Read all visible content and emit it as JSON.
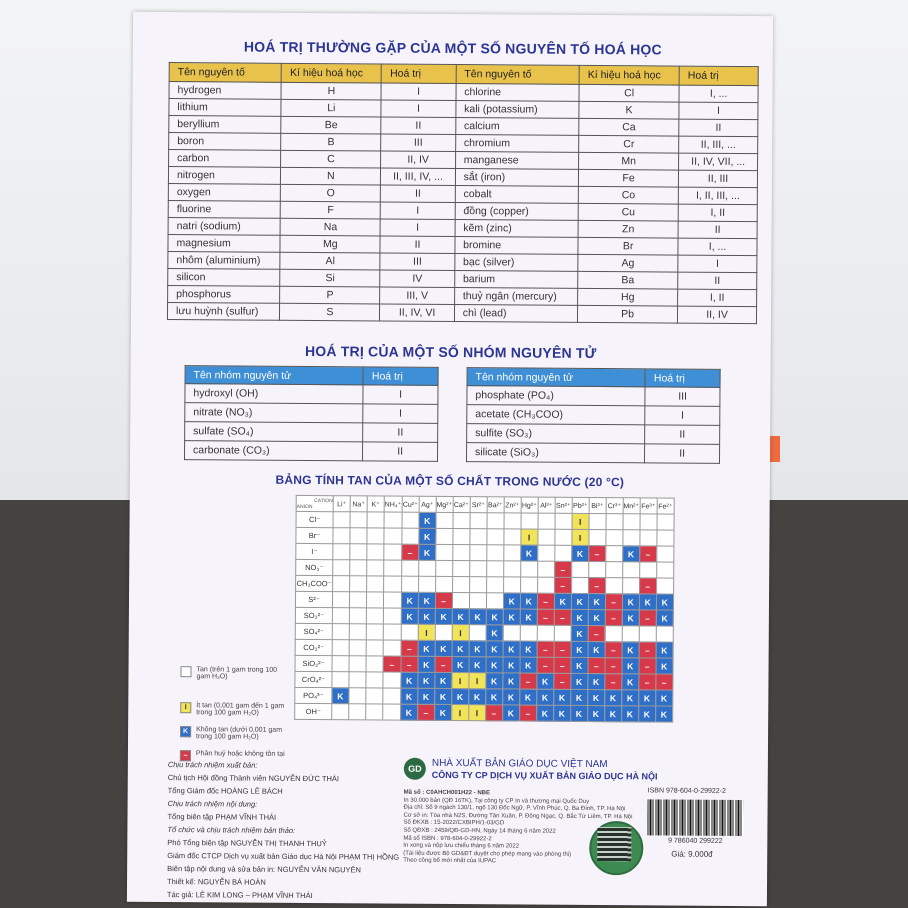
{
  "title1": "HOÁ TRỊ THƯỜNG GẶP CỦA MỘT SỐ NGUYÊN TỐ HOÁ HỌC",
  "t1_headers": [
    "Tên nguyên tố",
    "Kí hiệu hoá học",
    "Hoá trị",
    "Tên nguyên tố",
    "Kí hiệu hoá học",
    "Hoá trị"
  ],
  "t1_rows": [
    [
      "hydrogen",
      "H",
      "I",
      "chlorine",
      "Cl",
      "I, ..."
    ],
    [
      "lithium",
      "Li",
      "I",
      "kali (potassium)",
      "K",
      "I"
    ],
    [
      "beryllium",
      "Be",
      "II",
      "calcium",
      "Ca",
      "II"
    ],
    [
      "boron",
      "B",
      "III",
      "chromium",
      "Cr",
      "II, III, ..."
    ],
    [
      "carbon",
      "C",
      "II, IV",
      "manganese",
      "Mn",
      "II, IV, VII, ..."
    ],
    [
      "nitrogen",
      "N",
      "II, III, IV, ...",
      "sắt (iron)",
      "Fe",
      "II, III"
    ],
    [
      "oxygen",
      "O",
      "II",
      "cobalt",
      "Co",
      "I, II, III, ..."
    ],
    [
      "fluorine",
      "F",
      "I",
      "đồng (copper)",
      "Cu",
      "I, II"
    ],
    [
      "natri (sodium)",
      "Na",
      "I",
      "kẽm (zinc)",
      "Zn",
      "II"
    ],
    [
      "magnesium",
      "Mg",
      "II",
      "bromine",
      "Br",
      "I, ..."
    ],
    [
      "nhôm (aluminium)",
      "Al",
      "III",
      "bạc (silver)",
      "Ag",
      "I"
    ],
    [
      "silicon",
      "Si",
      "IV",
      "barium",
      "Ba",
      "II"
    ],
    [
      "phosphorus",
      "P",
      "III, V",
      "thuỷ ngân (mercury)",
      "Hg",
      "I, II"
    ],
    [
      "lưu huỳnh (sulfur)",
      "S",
      "II, IV, VI",
      "chì (lead)",
      "Pb",
      "II, IV"
    ]
  ],
  "title2": "HOÁ TRỊ CỦA MỘT SỐ NHÓM NGUYÊN TỬ",
  "t2_headers": [
    "Tên nhóm nguyên tử",
    "Hoá trị"
  ],
  "t2_left": [
    [
      "hydroxyl (OH)",
      "I"
    ],
    [
      "nitrate (NO₃)",
      "I"
    ],
    [
      "sulfate (SO₄)",
      "II"
    ],
    [
      "carbonate (CO₃)",
      "II"
    ]
  ],
  "t2_right": [
    [
      "phosphate (PO₄)",
      "III"
    ],
    [
      "acetate (CH₃COO)",
      "I"
    ],
    [
      "sulfite (SO₃)",
      "II"
    ],
    [
      "silicate (SiO₃)",
      "II"
    ]
  ],
  "title3": "BẢNG TÍNH TAN CỦA MỘT SỐ CHẤT TRONG NƯỚC (20 °C)",
  "sol_corner_top": "CATION",
  "sol_corner_bottom": "ANION",
  "cations": [
    "Li⁺",
    "Na⁺",
    "K⁺",
    "NH₄⁺",
    "Cu²⁺",
    "Ag⁺",
    "Mg²⁺",
    "Ca²⁺",
    "Sr²⁺",
    "Ba²⁺",
    "Zn²⁺",
    "Hg²⁺",
    "Al³⁺",
    "Sn²⁺",
    "Pb²⁺",
    "Bi³⁺",
    "Cr³⁺",
    "Mn²⁺",
    "Fe³⁺",
    "Fe²⁺"
  ],
  "anions": [
    "Cl⁻",
    "Br⁻",
    "I⁻",
    "NO₃⁻",
    "CH₃COO⁻",
    "S²⁻",
    "SO₃²⁻",
    "SO₄²⁻",
    "CO₃²⁻",
    "SiO₃²⁻",
    "CrO₄²⁻",
    "PO₄³⁻",
    "OH⁻"
  ],
  "sol_grid": [
    "TTTTTKTTTTTTTTITTTTT",
    "TTTTTKTTTTTITTITTTTT",
    "TTTTXKTTTTTKTTKXTKXT",
    "TTTTTTTTTTTTTXTTTTTT",
    "TTTTTTTTTTTTTXTXTTXT",
    "TTTTKKXTTTKKXKKKXKKK",
    "TTTTKKKKKKKKXXKKXKXK",
    "TTTTTITITKTTTTKXTTTT",
    "TTTTXKKKKKKKXXKKXKXK",
    "TTTXXKXKKKKKXXKXXKXK",
    "TTTTKKKIIKKXKXKKXKXX",
    "KTTTKKKKKKKKKKKKKKKK",
    "TTTTKXKIIXKXKKKKKKKK"
  ],
  "legend": [
    {
      "sym": "",
      "text": "Tan (trên 1 gam trong 100 gam H₂O)"
    },
    {
      "sym": "I",
      "text": "Ít tan (0,001 gam đến 1 gam trong 100 gam H₂O)"
    },
    {
      "sym": "K",
      "text": "Không tan (dưới 0,001 gam trong 100 gam H₂O)"
    },
    {
      "sym": "–",
      "text": "Phân huỷ hoặc không tồn tại"
    }
  ],
  "credits": [
    "Chịu trách nhiệm xuất bản:",
    "Chủ tịch Hội đồng Thành viên NGUYỄN ĐỨC THÁI",
    "Tổng Giám đốc HOÀNG LÊ BÁCH",
    "Chịu trách nhiệm nội dung:",
    "Tổng biên tập PHẠM VĨNH THÁI",
    "Tổ chức và chịu trách nhiệm bản thảo:",
    "Phó Tổng biên tập NGUYỄN THỊ THANH THUỶ",
    "Giám đốc CTCP Dịch vụ xuất bản Giáo dục Hà Nội PHẠM THỊ HỒNG",
    "Biên tập nội dung và sửa bản in: NGUYỄN VĂN NGUYÊN",
    "Thiết kế: NGUYỄN BÁ HOÀN",
    "Tác giả: LÊ KIM LONG – PHẠM VĨNH THÁI"
  ],
  "publisher1": "NHÀ XUẤT BẢN GIÁO DỤC VIỆT NAM",
  "publisher2": "CÔNG TY CP DỊCH VỤ XUẤT BẢN GIÁO DỤC HÀ NỘI",
  "imprint": [
    "Mã số : C0AHCH001H22 - NBE",
    "In 30.000 bản (QĐ 16TK), Tại công ty CP In và thương mại Quốc Duy",
    "Địa chỉ: Số 9 ngách 130/1, ngõ 130 Đốc Ngữ, P. Vĩnh Phúc, Q. Ba Đình, TP. Hà Nội",
    "Cơ sở in: Tòa nhà N2S, Đường Tân Xuân, P. Đông Ngạc, Q. Bắc Từ Liêm, TP. Hà Nội",
    "Số ĐKXB : 15-2022/CXBIPH/1-03/GD",
    "Số QĐXB : 2459/QĐ-GD-HN, Ngày 14 tháng 6 năm 2022",
    "Mã số ISBN : 978-604-0-29922-2",
    "In xong và nộp lưu chiểu tháng 6 năm 2022",
    "(Tài liệu được Bộ GD&ĐT duyệt cho phép mang vào phòng thi)",
    "Theo công bố mới nhất của IUPAC"
  ],
  "isbn": "ISBN 978-604-0-29922-2",
  "barcode_number": "9 786040 299222",
  "price": "Giá: 9.000đ",
  "logo_text": "GD",
  "colors": {
    "title": "#2b3593",
    "header_yellow": "#e8c24a",
    "header_blue": "#3f8fd6",
    "soluble": "#ffffff",
    "slightly": "#f1e35a",
    "insoluble": "#2f6fc8",
    "decompose": "#d6394a"
  }
}
